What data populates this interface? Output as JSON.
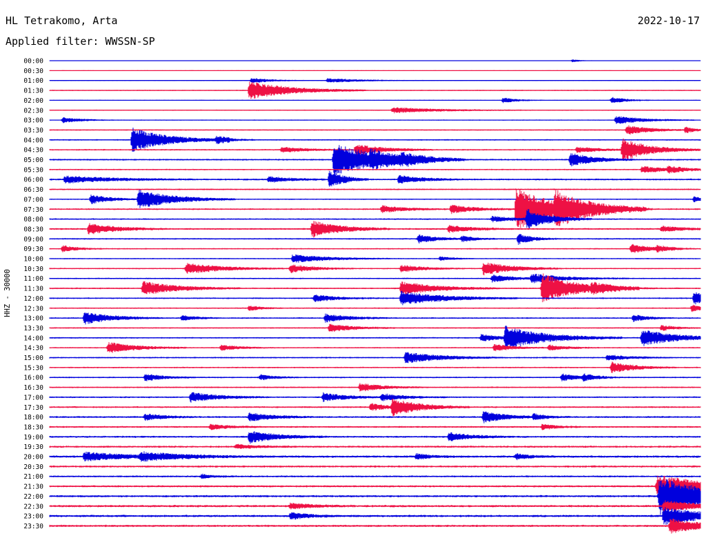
{
  "header": {
    "station": "HL Tetrakomo, Arta",
    "date": "2022-10-17",
    "filter_label": "Applied filter: WWSSN-SP"
  },
  "chart_data": {
    "type": "line",
    "ylabel": "HHZ - 30000",
    "row_labels": [
      "00:00",
      "00:30",
      "01:00",
      "01:30",
      "02:00",
      "02:30",
      "03:00",
      "03:30",
      "04:00",
      "04:30",
      "05:00",
      "05:30",
      "06:00",
      "06:30",
      "07:00",
      "07:30",
      "08:00",
      "08:30",
      "09:00",
      "09:30",
      "10:00",
      "10:30",
      "11:00",
      "11:30",
      "12:00",
      "12:30",
      "13:00",
      "13:30",
      "14:00",
      "14:30",
      "15:00",
      "15:30",
      "16:00",
      "16:30",
      "17:00",
      "17:30",
      "18:00",
      "18:30",
      "19:00",
      "19:30",
      "20:00",
      "20:30",
      "21:00",
      "21:30",
      "22:00",
      "22:30",
      "23:00",
      "23:30"
    ],
    "x_range_minutes": [
      0,
      30
    ],
    "colors": [
      "#0000dd",
      "#ee1144"
    ],
    "noise": [
      0.5,
      0.6,
      0.7,
      0.9,
      0.7,
      0.9,
      0.8,
      1.0,
      1.1,
      1.2,
      1.3,
      1.1,
      1.4,
      1.2,
      1.0,
      1.3,
      1.2,
      1.4,
      1.2,
      1.1,
      1.0,
      1.1,
      1.1,
      1.2,
      1.2,
      1.1,
      1.2,
      1.1,
      1.2,
      1.1,
      1.2,
      1.2,
      1.2,
      1.2,
      1.3,
      1.4,
      1.5,
      1.4,
      1.5,
      1.6,
      1.8,
      1.6,
      1.5,
      1.6,
      1.7,
      1.8,
      1.8,
      1.7
    ],
    "events": [
      {
        "row": 0,
        "t": 24.1,
        "amp": 2,
        "dur": 0.3
      },
      {
        "row": 2,
        "t": 9.3,
        "amp": 4,
        "dur": 0.8
      },
      {
        "row": 2,
        "t": 12.8,
        "amp": 3,
        "dur": 1.5
      },
      {
        "row": 3,
        "t": 9.2,
        "amp": 13,
        "dur": 1.8
      },
      {
        "row": 4,
        "t": 20.9,
        "amp": 4,
        "dur": 0.6
      },
      {
        "row": 4,
        "t": 25.9,
        "amp": 5,
        "dur": 0.6
      },
      {
        "row": 5,
        "t": 15.8,
        "amp": 4,
        "dur": 2.0
      },
      {
        "row": 6,
        "t": 0.6,
        "amp": 4,
        "dur": 0.8
      },
      {
        "row": 6,
        "t": 26.1,
        "amp": 6,
        "dur": 1.2
      },
      {
        "row": 7,
        "t": 26.6,
        "amp": 7,
        "dur": 1.0
      },
      {
        "row": 7,
        "t": 29.3,
        "amp": 4,
        "dur": 0.5
      },
      {
        "row": 8,
        "t": 3.8,
        "amp": 18,
        "dur": 1.5
      },
      {
        "row": 8,
        "t": 7.7,
        "amp": 5,
        "dur": 0.6
      },
      {
        "row": 9,
        "t": 10.7,
        "amp": 4,
        "dur": 1.0
      },
      {
        "row": 9,
        "t": 14.1,
        "amp": 8,
        "dur": 1.2
      },
      {
        "row": 9,
        "t": 26.4,
        "amp": 16,
        "dur": 1.2
      },
      {
        "row": 9,
        "t": 24.3,
        "amp": 4,
        "dur": 1.0
      },
      {
        "row": 10,
        "t": 13.1,
        "amp": 24,
        "dur": 2.0
      },
      {
        "row": 10,
        "t": 14.8,
        "amp": 6,
        "dur": 1.0
      },
      {
        "row": 10,
        "t": 16.2,
        "amp": 5,
        "dur": 1.0
      },
      {
        "row": 10,
        "t": 24.0,
        "amp": 10,
        "dur": 1.0
      },
      {
        "row": 11,
        "t": 27.3,
        "amp": 5,
        "dur": 1.0
      },
      {
        "row": 11,
        "t": 28.5,
        "amp": 4,
        "dur": 0.8
      },
      {
        "row": 12,
        "t": 0.7,
        "amp": 5,
        "dur": 2.0
      },
      {
        "row": 12,
        "t": 12.9,
        "amp": 14,
        "dur": 0.6
      },
      {
        "row": 12,
        "t": 16.1,
        "amp": 6,
        "dur": 1.0
      },
      {
        "row": 12,
        "t": 10.1,
        "amp": 4,
        "dur": 1.0
      },
      {
        "row": 14,
        "t": 1.9,
        "amp": 7,
        "dur": 0.8
      },
      {
        "row": 14,
        "t": 4.1,
        "amp": 14,
        "dur": 1.5
      },
      {
        "row": 14,
        "t": 29.7,
        "amp": 4,
        "dur": 0.5
      },
      {
        "row": 15,
        "t": 15.3,
        "amp": 5,
        "dur": 1.0
      },
      {
        "row": 15,
        "t": 18.5,
        "amp": 6,
        "dur": 1.0
      },
      {
        "row": 15,
        "t": 21.5,
        "amp": 30,
        "dur": 2.0
      },
      {
        "row": 15,
        "t": 23.3,
        "amp": 16,
        "dur": 1.5
      },
      {
        "row": 16,
        "t": 20.4,
        "amp": 4,
        "dur": 1.0
      },
      {
        "row": 16,
        "t": 22.0,
        "amp": 14,
        "dur": 1.0
      },
      {
        "row": 17,
        "t": 1.8,
        "amp": 8,
        "dur": 1.2
      },
      {
        "row": 17,
        "t": 12.1,
        "amp": 12,
        "dur": 1.2
      },
      {
        "row": 17,
        "t": 18.4,
        "amp": 5,
        "dur": 1.0
      },
      {
        "row": 17,
        "t": 28.2,
        "amp": 4,
        "dur": 1.0
      },
      {
        "row": 18,
        "t": 17.0,
        "amp": 6,
        "dur": 0.8
      },
      {
        "row": 18,
        "t": 19.0,
        "amp": 4,
        "dur": 0.6
      },
      {
        "row": 18,
        "t": 21.6,
        "amp": 8,
        "dur": 0.6
      },
      {
        "row": 19,
        "t": 0.6,
        "amp": 5,
        "dur": 0.6
      },
      {
        "row": 19,
        "t": 26.8,
        "amp": 7,
        "dur": 0.8
      },
      {
        "row": 19,
        "t": 28.0,
        "amp": 4,
        "dur": 0.6
      },
      {
        "row": 20,
        "t": 11.2,
        "amp": 6,
        "dur": 1.5
      },
      {
        "row": 20,
        "t": 18.0,
        "amp": 3,
        "dur": 0.5
      },
      {
        "row": 21,
        "t": 6.3,
        "amp": 8,
        "dur": 1.5
      },
      {
        "row": 21,
        "t": 11.1,
        "amp": 6,
        "dur": 1.0
      },
      {
        "row": 21,
        "t": 16.2,
        "amp": 5,
        "dur": 1.0
      },
      {
        "row": 21,
        "t": 20.0,
        "amp": 10,
        "dur": 1.2
      },
      {
        "row": 22,
        "t": 20.4,
        "amp": 5,
        "dur": 1.0
      },
      {
        "row": 22,
        "t": 22.2,
        "amp": 6,
        "dur": 1.5
      },
      {
        "row": 23,
        "t": 4.3,
        "amp": 10,
        "dur": 1.5
      },
      {
        "row": 23,
        "t": 16.2,
        "amp": 10,
        "dur": 1.5
      },
      {
        "row": 23,
        "t": 22.7,
        "amp": 22,
        "dur": 1.5
      },
      {
        "row": 23,
        "t": 25.0,
        "amp": 5,
        "dur": 1.0
      },
      {
        "row": 24,
        "t": 12.2,
        "amp": 5,
        "dur": 1.0
      },
      {
        "row": 24,
        "t": 16.2,
        "amp": 10,
        "dur": 1.8
      },
      {
        "row": 24,
        "t": 29.7,
        "amp": 9,
        "dur": 0.8
      },
      {
        "row": 25,
        "t": 9.2,
        "amp": 4,
        "dur": 0.5
      },
      {
        "row": 25,
        "t": 29.6,
        "amp": 5,
        "dur": 0.5
      },
      {
        "row": 26,
        "t": 1.6,
        "amp": 9,
        "dur": 1.2
      },
      {
        "row": 26,
        "t": 6.1,
        "amp": 4,
        "dur": 0.6
      },
      {
        "row": 26,
        "t": 12.7,
        "amp": 6,
        "dur": 1.0
      },
      {
        "row": 26,
        "t": 26.9,
        "amp": 5,
        "dur": 0.6
      },
      {
        "row": 27,
        "t": 12.9,
        "amp": 6,
        "dur": 1.0
      },
      {
        "row": 27,
        "t": 28.2,
        "amp": 4,
        "dur": 0.6
      },
      {
        "row": 28,
        "t": 19.9,
        "amp": 5,
        "dur": 0.8
      },
      {
        "row": 28,
        "t": 21.0,
        "amp": 16,
        "dur": 1.8
      },
      {
        "row": 28,
        "t": 27.3,
        "amp": 12,
        "dur": 1.5
      },
      {
        "row": 29,
        "t": 2.7,
        "amp": 8,
        "dur": 1.2
      },
      {
        "row": 29,
        "t": 7.9,
        "amp": 4,
        "dur": 0.8
      },
      {
        "row": 29,
        "t": 20.5,
        "amp": 5,
        "dur": 0.8
      },
      {
        "row": 29,
        "t": 23.0,
        "amp": 4,
        "dur": 0.8
      },
      {
        "row": 30,
        "t": 16.4,
        "amp": 8,
        "dur": 1.5
      },
      {
        "row": 30,
        "t": 25.7,
        "amp": 4,
        "dur": 1.0
      },
      {
        "row": 31,
        "t": 25.9,
        "amp": 8,
        "dur": 1.0
      },
      {
        "row": 32,
        "t": 4.4,
        "amp": 5,
        "dur": 0.8
      },
      {
        "row": 32,
        "t": 9.7,
        "amp": 4,
        "dur": 0.6
      },
      {
        "row": 32,
        "t": 23.6,
        "amp": 5,
        "dur": 0.8
      },
      {
        "row": 32,
        "t": 24.6,
        "amp": 4,
        "dur": 0.6
      },
      {
        "row": 33,
        "t": 14.3,
        "amp": 6,
        "dur": 1.0
      },
      {
        "row": 34,
        "t": 6.5,
        "amp": 7,
        "dur": 1.2
      },
      {
        "row": 34,
        "t": 12.6,
        "amp": 6,
        "dur": 1.0
      },
      {
        "row": 34,
        "t": 15.3,
        "amp": 5,
        "dur": 1.0
      },
      {
        "row": 35,
        "t": 15.8,
        "amp": 12,
        "dur": 1.2
      },
      {
        "row": 35,
        "t": 14.8,
        "amp": 5,
        "dur": 0.8
      },
      {
        "row": 36,
        "t": 4.4,
        "amp": 5,
        "dur": 0.8
      },
      {
        "row": 36,
        "t": 9.2,
        "amp": 6,
        "dur": 1.0
      },
      {
        "row": 36,
        "t": 20.0,
        "amp": 8,
        "dur": 1.0
      },
      {
        "row": 36,
        "t": 22.3,
        "amp": 4,
        "dur": 0.6
      },
      {
        "row": 37,
        "t": 7.4,
        "amp": 4,
        "dur": 0.8
      },
      {
        "row": 37,
        "t": 22.7,
        "amp": 4,
        "dur": 0.6
      },
      {
        "row": 38,
        "t": 9.2,
        "amp": 9,
        "dur": 1.2
      },
      {
        "row": 38,
        "t": 18.4,
        "amp": 6,
        "dur": 1.0
      },
      {
        "row": 39,
        "t": 8.6,
        "amp": 3,
        "dur": 1.0
      },
      {
        "row": 40,
        "t": 1.6,
        "amp": 6,
        "dur": 2.0
      },
      {
        "row": 40,
        "t": 4.2,
        "amp": 5,
        "dur": 2.0
      },
      {
        "row": 40,
        "t": 16.9,
        "amp": 4,
        "dur": 0.6
      },
      {
        "row": 40,
        "t": 21.5,
        "amp": 4,
        "dur": 0.6
      },
      {
        "row": 42,
        "t": 7.0,
        "amp": 3,
        "dur": 0.5
      },
      {
        "row": 43,
        "t": 28.0,
        "amp": 16,
        "dur": 2.5
      },
      {
        "row": 44,
        "t": 28.1,
        "amp": 26,
        "dur": 3.0
      },
      {
        "row": 45,
        "t": 11.1,
        "amp": 4,
        "dur": 1.0
      },
      {
        "row": 45,
        "t": 28.3,
        "amp": 8,
        "dur": 1.5
      },
      {
        "row": 46,
        "t": 11.1,
        "amp": 5,
        "dur": 0.8
      },
      {
        "row": 46,
        "t": 28.3,
        "amp": 12,
        "dur": 2.0
      },
      {
        "row": 47,
        "t": 28.6,
        "amp": 10,
        "dur": 1.5
      }
    ]
  }
}
